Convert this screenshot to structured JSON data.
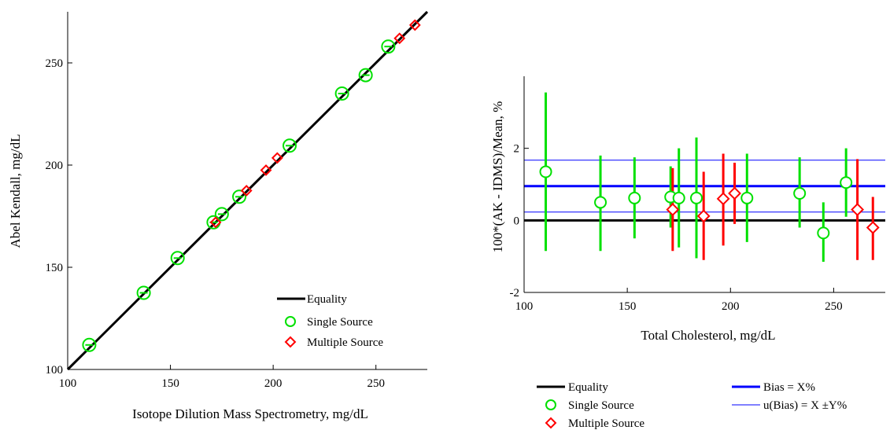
{
  "chart_data": [
    {
      "type": "scatter",
      "xlabel": "Isotope Dilution Mass Spectrometry, mg/dL",
      "ylabel": "Abel Kendall, mg/dL",
      "xlim": [
        100,
        275
      ],
      "ylim": [
        100,
        275
      ],
      "xticks": [
        "100",
        "150",
        "200",
        "250"
      ],
      "yticks": [
        "100",
        "150",
        "200",
        "250"
      ],
      "equality_line": {
        "name": "Equality",
        "from": [
          100,
          100
        ],
        "to": [
          275,
          275
        ],
        "color": "#000000"
      },
      "series": [
        {
          "name": "Single Source",
          "marker": "circle",
          "color": "#00e000",
          "points": [
            {
              "x": 110.5,
              "y": 112
            },
            {
              "x": 137,
              "y": 137.5
            },
            {
              "x": 153.5,
              "y": 154.5
            },
            {
              "x": 171,
              "y": 172
            },
            {
              "x": 175,
              "y": 176
            },
            {
              "x": 183.5,
              "y": 184.5
            },
            {
              "x": 208,
              "y": 209.5
            },
            {
              "x": 233.5,
              "y": 235
            },
            {
              "x": 245,
              "y": 244
            },
            {
              "x": 256,
              "y": 258
            }
          ]
        },
        {
          "name": "Multiple Source",
          "marker": "diamond",
          "color": "#ff0000",
          "points": [
            {
              "x": 172,
              "y": 172
            },
            {
              "x": 187,
              "y": 187.5
            },
            {
              "x": 196.5,
              "y": 197.5
            },
            {
              "x": 202,
              "y": 203.5
            },
            {
              "x": 261.5,
              "y": 262
            },
            {
              "x": 269,
              "y": 268.5
            }
          ]
        }
      ],
      "legend": {
        "placement": "bottom-right",
        "entries": [
          "Equality",
          "Single Source",
          "Multiple Source"
        ]
      }
    },
    {
      "type": "scatter",
      "subtype": "error-bar difference plot",
      "xlabel": "Total Cholesterol, mg/dL",
      "ylabel": "100*(AK - IDMS)/Mean, %",
      "xlim": [
        100,
        275
      ],
      "ylim": [
        -2,
        4
      ],
      "xticks": [
        "100",
        "150",
        "200",
        "250"
      ],
      "yticks": [
        "-2",
        "0",
        "2"
      ],
      "reference_lines": [
        {
          "name": "Equality",
          "y": 0,
          "color": "#000000",
          "weight": "thick"
        },
        {
          "name": "Bias = X%",
          "y": 0.95,
          "color": "#0000ff",
          "weight": "thick"
        },
        {
          "name": "u(Bias) = X ±Y%",
          "y": [
            0.23,
            1.67
          ],
          "color": "#0000ff",
          "weight": "thin"
        }
      ],
      "series": [
        {
          "name": "Single Source",
          "marker": "circle",
          "color": "#00e000",
          "points": [
            {
              "x": 110.5,
              "y": 1.35,
              "lo": -0.85,
              "hi": 3.55
            },
            {
              "x": 137,
              "y": 0.5,
              "lo": -0.85,
              "hi": 1.8
            },
            {
              "x": 153.5,
              "y": 0.62,
              "lo": -0.5,
              "hi": 1.75
            },
            {
              "x": 171,
              "y": 0.65,
              "lo": -0.2,
              "hi": 1.5
            },
            {
              "x": 175,
              "y": 0.62,
              "lo": -0.75,
              "hi": 2.0
            },
            {
              "x": 183.5,
              "y": 0.62,
              "lo": -1.05,
              "hi": 2.3
            },
            {
              "x": 208,
              "y": 0.62,
              "lo": -0.6,
              "hi": 1.85
            },
            {
              "x": 233.5,
              "y": 0.75,
              "lo": -0.2,
              "hi": 1.75
            },
            {
              "x": 245,
              "y": -0.35,
              "lo": -1.15,
              "hi": 0.5
            },
            {
              "x": 256,
              "y": 1.05,
              "lo": 0.1,
              "hi": 2.0
            }
          ]
        },
        {
          "name": "Multiple Source",
          "marker": "diamond",
          "color": "#ff0000",
          "points": [
            {
              "x": 172,
              "y": 0.3,
              "lo": -0.85,
              "hi": 1.45
            },
            {
              "x": 187,
              "y": 0.12,
              "lo": -1.1,
              "hi": 1.35
            },
            {
              "x": 196.5,
              "y": 0.6,
              "lo": -0.7,
              "hi": 1.85
            },
            {
              "x": 202,
              "y": 0.75,
              "lo": -0.1,
              "hi": 1.6
            },
            {
              "x": 261.5,
              "y": 0.3,
              "lo": -1.1,
              "hi": 1.7
            },
            {
              "x": 269,
              "y": -0.2,
              "lo": -1.1,
              "hi": 0.65
            }
          ]
        }
      ],
      "legend": {
        "placement": "below plot",
        "entries": [
          "Equality",
          "Single Source",
          "Multiple Source",
          "Bias = X%",
          "u(Bias) = X ±Y%"
        ]
      }
    }
  ]
}
